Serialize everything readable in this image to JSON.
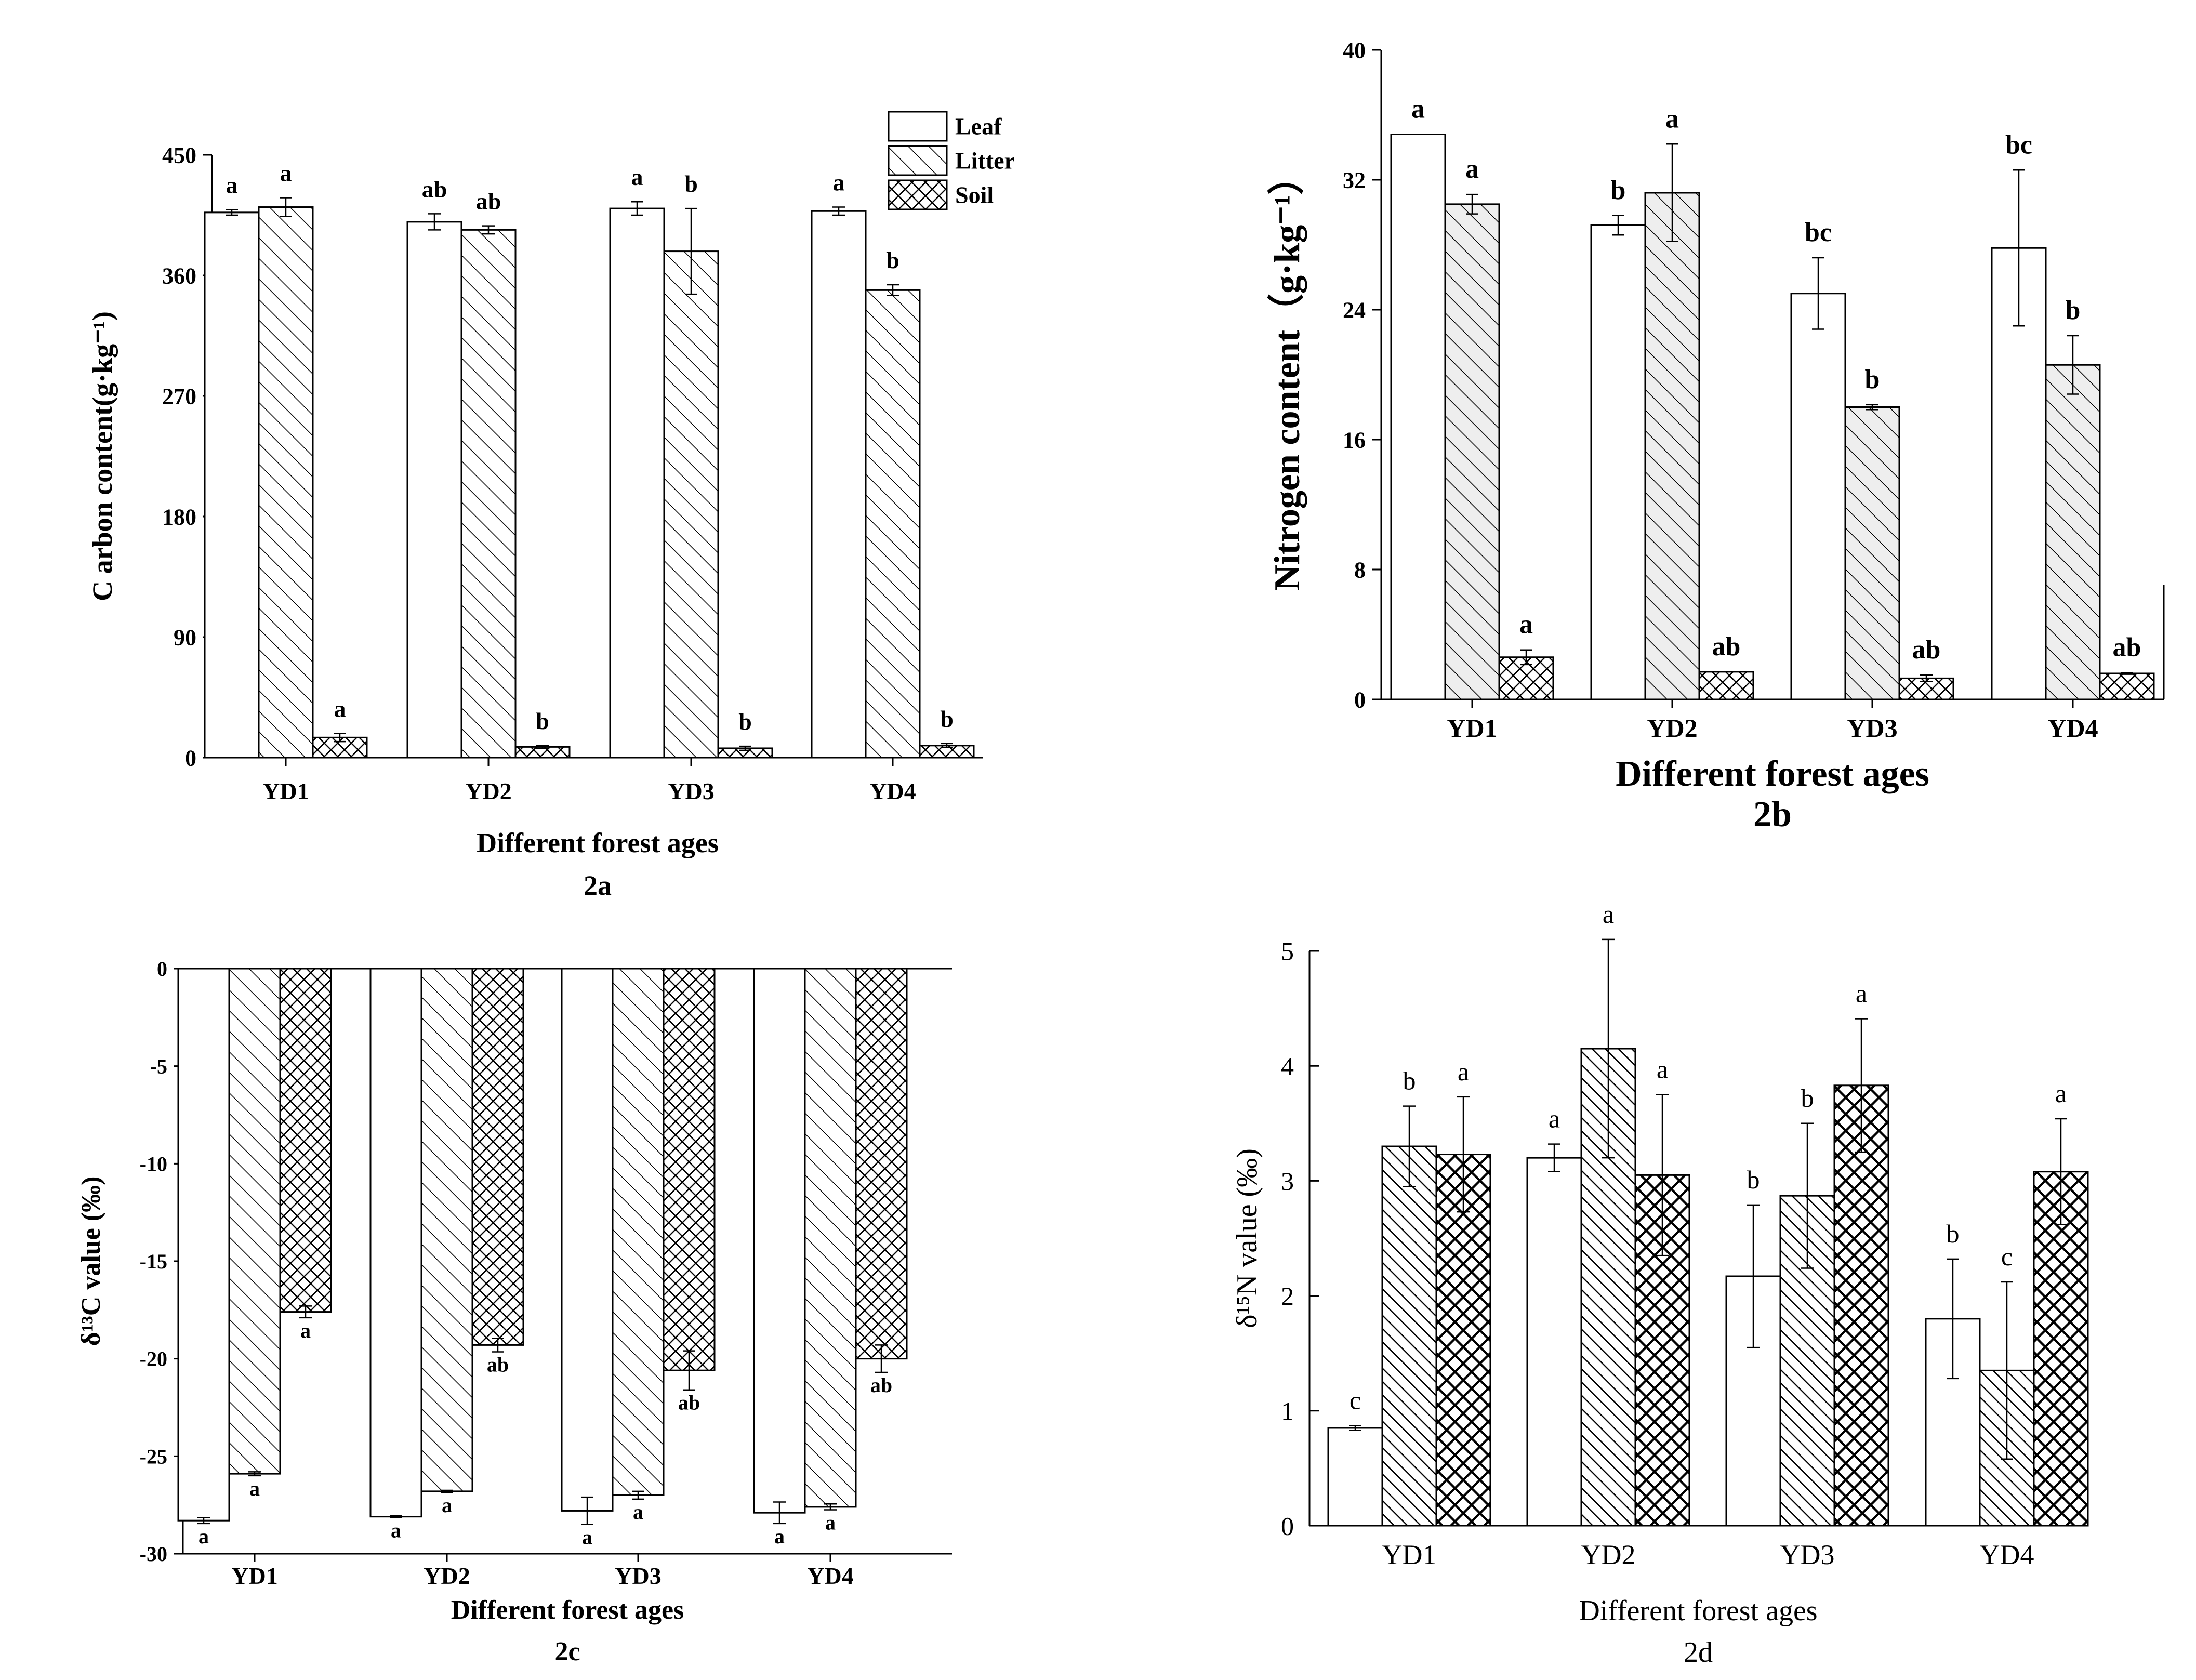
{
  "figure": {
    "series_names": [
      "Leaf",
      "Litter",
      "Soil"
    ],
    "colors": {
      "ink": "#000000",
      "bar_fill": "#ffffff",
      "light_fill": "#eeeeee"
    }
  },
  "chart_data": [
    {
      "id": "2a",
      "type": "bar",
      "panel_label": "2a",
      "xlabel": "Different forest ages",
      "ylabel": "C arbon content(g·kg⁻¹)",
      "ylim": [
        0,
        450
      ],
      "yticks": [
        "0",
        "90",
        "180",
        "270",
        "360",
        "450"
      ],
      "legend": {
        "position": "top-right",
        "entries": [
          "Leaf",
          "Litter",
          "Soil"
        ]
      },
      "categories": [
        "YD1",
        "YD2",
        "YD3",
        "YD4"
      ],
      "series": [
        {
          "name": "Leaf",
          "values": [
            407,
            400,
            410,
            408
          ],
          "errors": [
            2,
            6,
            5,
            3
          ],
          "letters": [
            "a",
            "ab",
            "a",
            "a"
          ]
        },
        {
          "name": "Litter",
          "values": [
            411,
            394,
            378,
            349
          ],
          "errors": [
            7,
            3,
            32,
            4
          ],
          "letters": [
            "a",
            "ab",
            "b",
            "b"
          ]
        },
        {
          "name": "Soil",
          "values": [
            15,
            8,
            7,
            9
          ],
          "errors": [
            3,
            1,
            1.5,
            1.5
          ],
          "letters": [
            "a",
            "b",
            "b",
            "b"
          ]
        }
      ]
    },
    {
      "id": "2b",
      "type": "bar",
      "panel_label": "2b",
      "xlabel": "Different forest ages",
      "ylabel": "Nitrogen content（g·kg⁻¹）",
      "ylim": [
        0,
        40
      ],
      "yticks": [
        "0",
        "8",
        "16",
        "24",
        "32",
        "40"
      ],
      "categories": [
        "YD1",
        "YD2",
        "YD3",
        "YD4"
      ],
      "series": [
        {
          "name": "Leaf",
          "values": [
            34.8,
            29.2,
            25.0,
            27.8
          ],
          "errors": [
            0,
            0.6,
            2.2,
            4.8
          ],
          "letters": [
            "a",
            "b",
            "bc",
            "bc"
          ]
        },
        {
          "name": "Litter",
          "values": [
            30.5,
            31.2,
            18.0,
            20.6
          ],
          "errors": [
            0.6,
            3.0,
            0.15,
            1.8
          ],
          "letters": [
            "a",
            "a",
            "b",
            "b"
          ]
        },
        {
          "name": "Soil",
          "values": [
            2.6,
            1.7,
            1.3,
            1.6
          ],
          "errors": [
            0.45,
            0,
            0.2,
            0.05
          ],
          "letters": [
            "a",
            "ab",
            "ab",
            "ab"
          ]
        }
      ]
    },
    {
      "id": "2c",
      "type": "bar",
      "panel_label": "2c",
      "xlabel": "Different forest ages",
      "ylabel": "δ¹³C value (‰)",
      "ylim": [
        -30,
        0
      ],
      "yticks": [
        "-30",
        "-25",
        "-20",
        "-15",
        "-10",
        "-5",
        "0"
      ],
      "categories": [
        "YD1",
        "YD2",
        "YD3",
        "YD4"
      ],
      "series": [
        {
          "name": "Leaf",
          "values": [
            -28.3,
            -28.1,
            -27.8,
            -27.9
          ],
          "errors": [
            0.15,
            0.05,
            0.7,
            0.55
          ],
          "letters": [
            "a",
            "a",
            "a",
            "a"
          ]
        },
        {
          "name": "Litter",
          "values": [
            -25.9,
            -26.8,
            -27.0,
            -27.6
          ],
          "errors": [
            0.1,
            0.05,
            0.2,
            0.15
          ],
          "letters": [
            "a",
            "a",
            "a",
            "a"
          ]
        },
        {
          "name": "Soil",
          "values": [
            -17.6,
            -19.3,
            -20.6,
            -20.0
          ],
          "errors": [
            0.3,
            0.35,
            1.0,
            0.7
          ],
          "letters": [
            "a",
            "ab",
            "ab",
            "ab"
          ]
        }
      ]
    },
    {
      "id": "2d",
      "type": "bar",
      "panel_label": "2d",
      "xlabel": "Different forest ages",
      "ylabel": "δ¹⁵N value (‰)",
      "ylim": [
        0,
        5
      ],
      "yticks": [
        "0",
        "1",
        "2",
        "3",
        "4",
        "5"
      ],
      "categories": [
        "YD1",
        "YD2",
        "YD3",
        "YD4"
      ],
      "series": [
        {
          "name": "Leaf",
          "values": [
            0.85,
            3.2,
            2.17,
            1.8
          ],
          "errors": [
            0.02,
            0.12,
            0.62,
            0.52
          ],
          "letters": [
            "c",
            "a",
            "b",
            "b"
          ]
        },
        {
          "name": "Litter",
          "values": [
            3.3,
            4.15,
            2.87,
            1.35
          ],
          "errors": [
            0.35,
            0.95,
            0.63,
            0.77
          ],
          "letters": [
            "b",
            "a",
            "b",
            "c"
          ]
        },
        {
          "name": "Soil",
          "values": [
            3.23,
            3.05,
            3.83,
            3.08
          ],
          "errors": [
            0.5,
            0.7,
            0.58,
            0.46
          ],
          "letters": [
            "a",
            "a",
            "a",
            "a"
          ]
        }
      ]
    }
  ]
}
